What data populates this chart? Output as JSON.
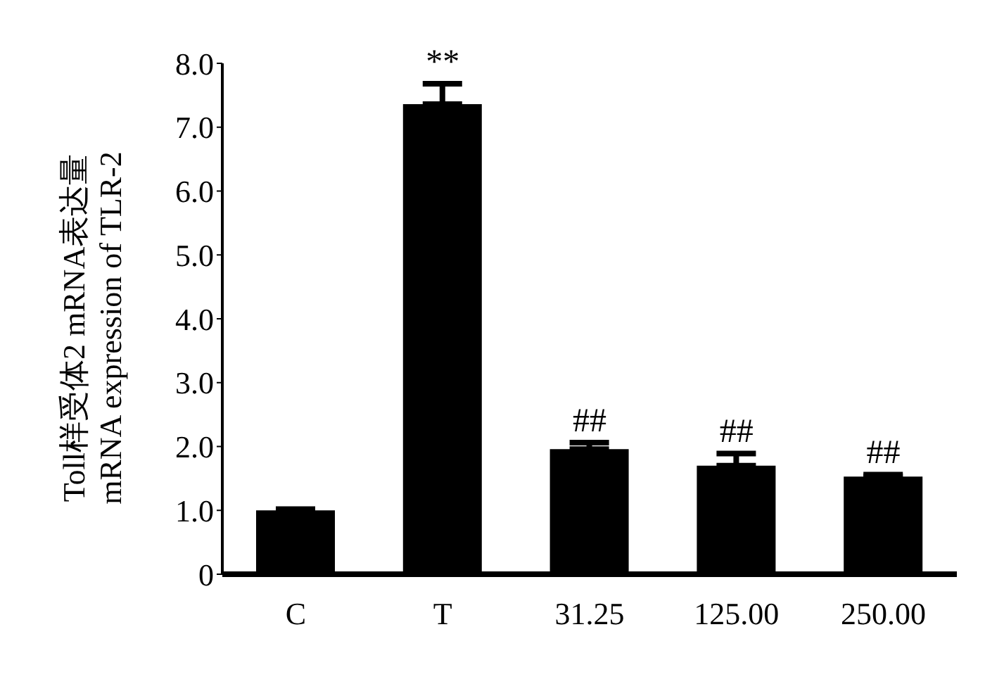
{
  "chart_data": {
    "type": "bar",
    "categories": [
      "C",
      "T",
      "31.25",
      "125.00",
      "250.00"
    ],
    "values": [
      1.0,
      7.36,
      1.96,
      1.7,
      1.53
    ],
    "errors": [
      [
        1.0,
        1.02
      ],
      [
        7.36,
        7.68
      ],
      [
        1.96,
        2.06
      ],
      [
        1.7,
        1.89
      ],
      [
        1.53,
        1.56
      ]
    ],
    "color": "#000000",
    "ylabel": "Toll样受体2 mRNA表达量\nmRNA expression of TLR-2",
    "ylim": [
      0,
      8
    ],
    "yticks": [
      {
        "value": 0,
        "label": "0"
      },
      {
        "value": 1,
        "label": "1.0"
      },
      {
        "value": 2,
        "label": "2.0"
      },
      {
        "value": 3,
        "label": "3.0"
      },
      {
        "value": 4,
        "label": "4.0"
      },
      {
        "value": 5,
        "label": "5.0"
      },
      {
        "value": 6,
        "label": "6.0"
      },
      {
        "value": 7,
        "label": "7.0"
      },
      {
        "value": 8,
        "label": "8.0"
      }
    ],
    "grid": false,
    "legend": false,
    "annotations": [
      {
        "text": "**",
        "x": "T",
        "y": 7.68
      },
      {
        "text": "##",
        "x": "31.25",
        "y": 2.06
      },
      {
        "text": "##",
        "x": "125.00",
        "y": 1.89
      },
      {
        "text": "##",
        "x": "250.00",
        "y": 1.56
      }
    ]
  }
}
